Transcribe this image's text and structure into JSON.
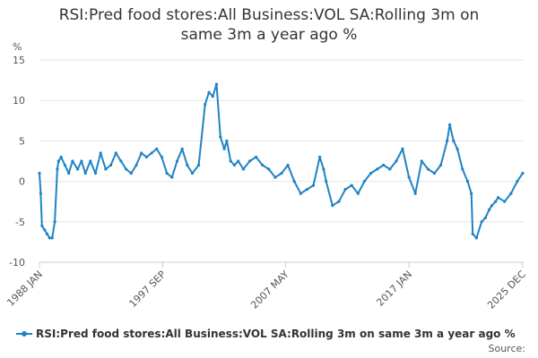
{
  "title_line1": "RSI:Pred food stores:All Business:VOL SA:Rolling 3m on",
  "title_line2": "same 3m a year ago %",
  "source_label": "Source:",
  "chart_data": {
    "type": "line",
    "title": "RSI:Pred food stores:All Business:VOL SA:Rolling 3m on same 3m a year ago %",
    "ylabel": "%",
    "xlabel": "",
    "ylim": [
      -10,
      15
    ],
    "yticks": [
      -10,
      -5,
      0,
      5,
      10,
      15
    ],
    "xlim": [
      1988.0,
      2026.0
    ],
    "xticks": [
      {
        "label": "1988 JAN",
        "x": 1988.0
      },
      {
        "label": "1997 SEP",
        "x": 1997.67
      },
      {
        "label": "2007 MAY",
        "x": 2007.33
      },
      {
        "label": "2017 JAN",
        "x": 2017.0
      },
      {
        "label": "2025 DEC",
        "x": 2025.92
      }
    ],
    "grid": true,
    "legend_position": "bottom-left",
    "series_color": "#1f83c4",
    "series": [
      {
        "name": "RSI:Pred food stores:All Business:VOL SA:Rolling 3m on same 3m a year ago %",
        "x": [
          1988.0,
          1988.1,
          1988.2,
          1988.4,
          1988.6,
          1988.8,
          1989.0,
          1989.2,
          1989.4,
          1989.5,
          1989.7,
          1990.0,
          1990.3,
          1990.6,
          1991.0,
          1991.3,
          1991.6,
          1992.0,
          1992.4,
          1992.8,
          1993.2,
          1993.6,
          1994.0,
          1994.4,
          1994.8,
          1995.2,
          1995.6,
          1996.0,
          1996.4,
          1996.8,
          1997.2,
          1997.6,
          1998.0,
          1998.4,
          1998.8,
          1999.2,
          1999.6,
          2000.0,
          2000.5,
          2001.0,
          2001.3,
          2001.6,
          2001.9,
          2002.2,
          2002.5,
          2002.7,
          2003.0,
          2003.3,
          2003.6,
          2004.0,
          2004.5,
          2005.0,
          2005.5,
          2006.0,
          2006.5,
          2007.0,
          2007.5,
          2008.0,
          2008.5,
          2009.0,
          2009.5,
          2010.0,
          2010.3,
          2010.5,
          2011.0,
          2011.5,
          2012.0,
          2012.5,
          2013.0,
          2013.5,
          2014.0,
          2014.5,
          2015.0,
          2015.5,
          2016.0,
          2016.5,
          2017.0,
          2017.5,
          2018.0,
          2018.5,
          2019.0,
          2019.5,
          2020.0,
          2020.2,
          2020.5,
          2020.8,
          2021.2,
          2021.6,
          2021.9,
          2022.0,
          2022.3,
          2022.7,
          2023.0,
          2023.3,
          2023.5,
          2023.8,
          2024.0,
          2024.5,
          2025.0,
          2025.5,
          2025.92
        ],
        "values": [
          1.0,
          -1.5,
          -5.5,
          -6.0,
          -6.5,
          -7.0,
          -7.0,
          -5.0,
          1.5,
          2.5,
          3.0,
          2.0,
          1.0,
          2.5,
          1.5,
          2.5,
          1.0,
          2.5,
          1.0,
          3.5,
          1.5,
          2.0,
          3.5,
          2.5,
          1.5,
          1.0,
          2.0,
          3.5,
          3.0,
          3.5,
          4.0,
          3.0,
          1.0,
          0.5,
          2.5,
          4.0,
          2.0,
          1.0,
          2.0,
          9.5,
          11.0,
          10.5,
          12.0,
          5.5,
          4.0,
          5.0,
          2.5,
          2.0,
          2.5,
          1.5,
          2.5,
          3.0,
          2.0,
          1.5,
          0.5,
          1.0,
          2.0,
          0.0,
          -1.5,
          -1.0,
          -0.5,
          3.0,
          1.5,
          0.0,
          -3.0,
          -2.5,
          -1.0,
          -0.5,
          -1.5,
          0.0,
          1.0,
          1.5,
          2.0,
          1.5,
          2.5,
          4.0,
          0.5,
          -1.5,
          2.5,
          1.5,
          1.0,
          2.0,
          5.0,
          7.0,
          5.0,
          4.0,
          1.5,
          0.0,
          -1.5,
          -6.5,
          -7.0,
          -5.0,
          -4.5,
          -3.5,
          -3.0,
          -2.5,
          -2.0,
          -2.5,
          -1.5,
          0.0,
          1.0
        ]
      }
    ]
  }
}
